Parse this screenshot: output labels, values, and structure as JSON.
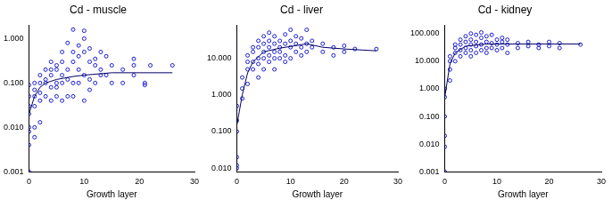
{
  "chart_data": [
    {
      "type": "scatter",
      "title": "Cd - muscle",
      "x_label": "Growth layer",
      "xlim": [
        0,
        30
      ],
      "xticks": [
        0,
        10,
        20,
        30
      ],
      "ylim": [
        0.001,
        2
      ],
      "log": "y",
      "grid": false,
      "yticks": [
        {
          "value": 0.001,
          "label": "0.001"
        },
        {
          "value": 0.01,
          "label": "0.010"
        },
        {
          "value": 0.1,
          "label": "0.100"
        },
        {
          "value": 1,
          "label": "1.000"
        }
      ],
      "series": [
        {
          "type": "scatter",
          "color": "#1a1acc",
          "marker": "open_circle",
          "x": [
            0,
            0,
            0,
            0,
            0,
            0,
            0,
            0,
            1,
            1,
            1,
            1,
            1,
            1,
            2,
            2,
            2,
            2,
            2,
            3,
            3,
            3,
            3,
            4,
            4,
            4,
            4,
            4,
            5,
            5,
            5,
            5,
            5,
            6,
            6,
            6,
            6,
            6,
            7,
            7,
            7,
            7,
            8,
            8,
            8,
            8,
            8,
            9,
            9,
            9,
            9,
            10,
            10,
            10,
            10,
            10,
            11,
            11,
            11,
            11,
            12,
            12,
            12,
            13,
            13,
            13,
            14,
            14,
            15,
            15,
            17,
            17,
            19,
            19,
            19,
            21,
            21,
            22,
            26
          ],
          "values": [
            0.001,
            0.004,
            0.008,
            0.01,
            0.02,
            0.03,
            0.05,
            0.09,
            0.006,
            0.01,
            0.03,
            0.05,
            0.07,
            0.1,
            0.013,
            0.04,
            0.06,
            0.1,
            0.15,
            0.05,
            0.1,
            0.2,
            0.12,
            0.04,
            0.08,
            0.15,
            0.3,
            0.2,
            0.05,
            0.1,
            0.2,
            0.25,
            0.08,
            0.04,
            0.1,
            0.3,
            0.5,
            0.15,
            0.05,
            0.12,
            0.2,
            0.8,
            0.1,
            0.3,
            0.5,
            1.6,
            0.05,
            0.1,
            0.2,
            0.4,
            0.7,
            0.04,
            0.15,
            0.5,
            1.0,
            1.5,
            0.12,
            0.3,
            0.6,
            0.07,
            0.1,
            0.25,
            0.35,
            0.2,
            0.5,
            0.15,
            0.15,
            0.4,
            0.1,
            0.25,
            0.2,
            0.1,
            0.25,
            0.35,
            0.15,
            0.1,
            0.09,
            0.25,
            0.25
          ]
        },
        {
          "type": "line",
          "color": "#000066",
          "line_style": "solid",
          "x": [
            0,
            1,
            2,
            3,
            5,
            8,
            10,
            15,
            20,
            26
          ],
          "values": [
            0.02,
            0.05,
            0.08,
            0.1,
            0.12,
            0.14,
            0.15,
            0.17,
            0.17,
            0.17
          ]
        }
      ]
    },
    {
      "type": "scatter",
      "title": "Cd - liver",
      "x_label": "Growth layer",
      "xlim": [
        0,
        30
      ],
      "xticks": [
        0,
        10,
        20,
        30
      ],
      "ylim": [
        0.008,
        80
      ],
      "log": "y",
      "grid": false,
      "yticks": [
        {
          "value": 0.01,
          "label": "0.010"
        },
        {
          "value": 0.1,
          "label": "0.100"
        },
        {
          "value": 1,
          "label": "1.000"
        },
        {
          "value": 10,
          "label": "10.000"
        }
      ],
      "series": [
        {
          "type": "scatter",
          "color": "#1a1acc",
          "marker": "open_circle",
          "x": [
            0,
            0,
            0,
            0,
            0,
            0,
            1,
            1,
            1,
            2,
            2,
            2,
            2,
            3,
            3,
            3,
            3,
            4,
            4,
            4,
            4,
            4,
            5,
            5,
            5,
            5,
            5,
            6,
            6,
            6,
            6,
            6,
            7,
            7,
            7,
            7,
            7,
            8,
            8,
            8,
            8,
            9,
            9,
            9,
            9,
            10,
            10,
            10,
            10,
            11,
            11,
            11,
            12,
            12,
            12,
            13,
            13,
            13,
            14,
            14,
            16,
            16,
            18,
            18,
            20,
            20,
            22,
            26
          ],
          "values": [
            0.01,
            0.012,
            0.02,
            0.1,
            0.2,
            0.5,
            0.8,
            1.5,
            3,
            2,
            5,
            8,
            12,
            5,
            8,
            15,
            20,
            3,
            7,
            10,
            20,
            30,
            5,
            10,
            15,
            25,
            40,
            8,
            12,
            20,
            30,
            50,
            5,
            10,
            15,
            25,
            40,
            10,
            15,
            20,
            30,
            8,
            12,
            25,
            45,
            10,
            20,
            30,
            60,
            15,
            25,
            40,
            12,
            20,
            35,
            15,
            25,
            60,
            20,
            30,
            15,
            25,
            12,
            20,
            15,
            22,
            18,
            18
          ]
        },
        {
          "type": "line",
          "color": "#000066",
          "line_style": "solid",
          "x": [
            0,
            1,
            2,
            3,
            5,
            8,
            10,
            13,
            16,
            20,
            26
          ],
          "values": [
            0.15,
            1,
            4,
            8,
            15,
            19,
            21,
            25,
            20,
            18,
            16
          ]
        }
      ]
    },
    {
      "type": "scatter",
      "title": "Cd - kidney",
      "x_label": "Growth layer",
      "xlim": [
        0,
        30
      ],
      "xticks": [
        0,
        10,
        20,
        30
      ],
      "ylim": [
        0.001,
        200
      ],
      "log": "y",
      "grid": false,
      "yticks": [
        {
          "value": 0.001,
          "label": "0.001"
        },
        {
          "value": 0.01,
          "label": "0.010"
        },
        {
          "value": 0.1,
          "label": "0.100"
        },
        {
          "value": 1,
          "label": "1.000"
        },
        {
          "value": 10,
          "label": "10.000"
        },
        {
          "value": 100,
          "label": "100.000"
        }
      ],
      "series": [
        {
          "type": "scatter",
          "color": "#1a1acc",
          "marker": "open_circle",
          "x": [
            0,
            0,
            0,
            0,
            0,
            0,
            1,
            1,
            1,
            1,
            2,
            2,
            2,
            2,
            3,
            3,
            3,
            3,
            4,
            4,
            4,
            4,
            5,
            5,
            5,
            5,
            5,
            6,
            6,
            6,
            6,
            7,
            7,
            7,
            7,
            8,
            8,
            8,
            8,
            9,
            9,
            9,
            10,
            10,
            10,
            11,
            11,
            11,
            12,
            12,
            12,
            14,
            14,
            16,
            16,
            18,
            18,
            20,
            20,
            22,
            22,
            26
          ],
          "values": [
            0.001,
            0.008,
            0.02,
            0.1,
            0.5,
            1,
            2,
            5,
            10,
            15,
            10,
            20,
            30,
            40,
            15,
            25,
            40,
            60,
            20,
            30,
            50,
            80,
            15,
            25,
            40,
            60,
            100,
            20,
            35,
            50,
            90,
            25,
            40,
            70,
            110,
            20,
            30,
            50,
            80,
            30,
            45,
            90,
            25,
            40,
            60,
            30,
            50,
            70,
            20,
            40,
            60,
            30,
            45,
            35,
            50,
            30,
            40,
            35,
            50,
            30,
            45,
            40
          ]
        },
        {
          "type": "line",
          "color": "#000066",
          "line_style": "solid",
          "x": [
            0,
            1,
            2,
            4,
            8,
            12,
            20,
            26
          ],
          "values": [
            0.5,
            8,
            20,
            35,
            42,
            42,
            42,
            42
          ]
        }
      ]
    }
  ]
}
